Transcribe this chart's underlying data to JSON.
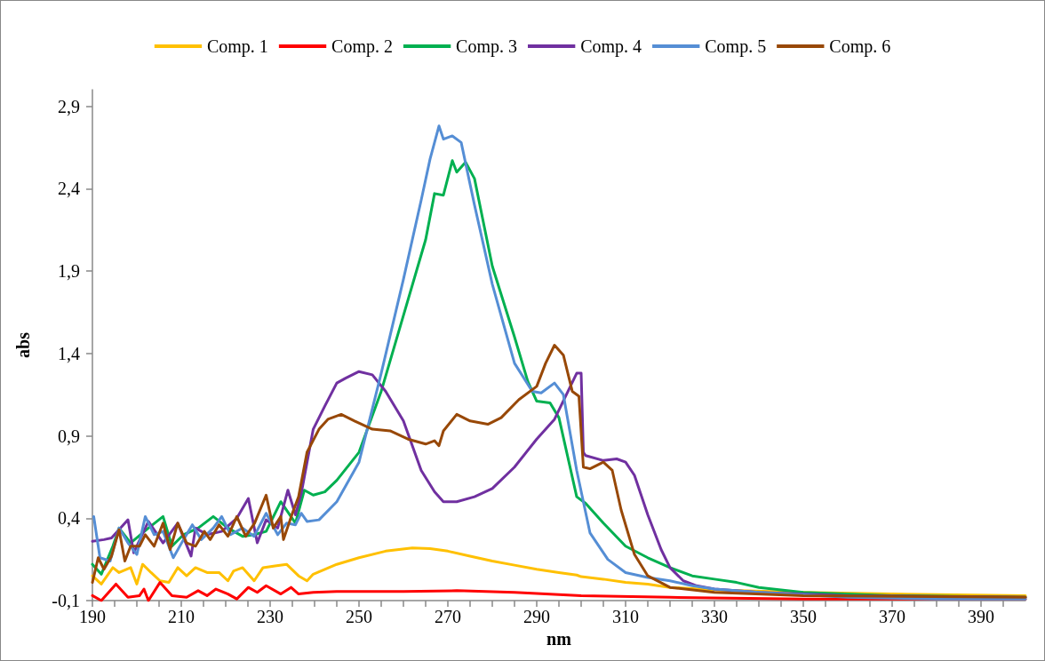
{
  "chart_data": {
    "type": "line",
    "xlabel": "nm",
    "ylabel": "abs",
    "legend": "top",
    "grid": false,
    "xlim": [
      190,
      400
    ],
    "xticks": [
      190,
      {
        "value": 195,
        "label": null
      },
      {
        "value": 200,
        "label": null
      },
      {
        "value": 205,
        "label": null
      },
      210,
      {
        "value": 215,
        "label": null
      },
      {
        "value": 220,
        "label": null
      },
      {
        "value": 225,
        "label": null
      },
      230,
      {
        "value": 235,
        "label": null
      },
      {
        "value": 240,
        "label": null
      },
      {
        "value": 245,
        "label": null
      },
      250,
      {
        "value": 255,
        "label": null
      },
      {
        "value": 260,
        "label": null
      },
      {
        "value": 265,
        "label": null
      },
      270,
      {
        "value": 275,
        "label": null
      },
      {
        "value": 280,
        "label": null
      },
      {
        "value": 285,
        "label": null
      },
      290,
      {
        "value": 295,
        "label": null
      },
      {
        "value": 300,
        "label": null
      },
      {
        "value": 305,
        "label": null
      },
      310,
      {
        "value": 315,
        "label": null
      },
      {
        "value": 320,
        "label": null
      },
      {
        "value": 325,
        "label": null
      },
      330,
      {
        "value": 335,
        "label": null
      },
      {
        "value": 340,
        "label": null
      },
      {
        "value": 345,
        "label": null
      },
      350,
      {
        "value": 355,
        "label": null
      },
      {
        "value": 360,
        "label": null
      },
      {
        "value": 365,
        "label": null
      },
      370,
      {
        "value": 375,
        "label": null
      },
      {
        "value": 380,
        "label": null
      },
      {
        "value": 385,
        "label": null
      },
      390,
      {
        "value": 395,
        "label": null
      }
    ],
    "ylim": [
      -0.1,
      3.0
    ],
    "yticks": [
      {
        "value": -0.1,
        "label": "-0,1"
      },
      {
        "value": 0.4,
        "label": "0,4"
      },
      {
        "value": 0.9,
        "label": "0,9"
      },
      {
        "value": 1.4,
        "label": "1,4"
      },
      {
        "value": 1.9,
        "label": "1,9"
      },
      {
        "value": 2.4,
        "label": "2,4"
      },
      {
        "value": 2.9,
        "label": "2,9"
      }
    ],
    "series": [
      {
        "name": "Comp. 1",
        "color": "#ffc000",
        "x": [
          190,
          192,
          194.6,
          196,
          198.6,
          200,
          201.3,
          203.2,
          205.2,
          207.2,
          209.2,
          211.2,
          213.2,
          215.8,
          218.5,
          220.5,
          221.8,
          223.8,
          226.4,
          228.4,
          231.1,
          233.7,
          236.4,
          238.3,
          239.7,
          245,
          250,
          256,
          262,
          266,
          270,
          275,
          280,
          285,
          290,
          295,
          299,
          300,
          305,
          310,
          315,
          320,
          330,
          350,
          370,
          400
        ],
        "values": [
          0.05,
          0.0,
          0.1,
          0.07,
          0.1,
          0.0,
          0.12,
          0.07,
          0.02,
          0.01,
          0.1,
          0.05,
          0.1,
          0.07,
          0.07,
          0.02,
          0.08,
          0.1,
          0.02,
          0.1,
          0.11,
          0.12,
          0.05,
          0.02,
          0.06,
          0.12,
          0.16,
          0.2,
          0.22,
          0.215,
          0.2,
          0.17,
          0.14,
          0.115,
          0.09,
          0.07,
          0.055,
          0.045,
          0.03,
          0.01,
          0.0,
          -0.02,
          -0.035,
          -0.05,
          -0.06,
          -0.07
        ]
      },
      {
        "name": "Comp. 2",
        "color": "#ff0000",
        "x": [
          190,
          192,
          195.3,
          198,
          200.6,
          201.6,
          202.6,
          205.2,
          207.9,
          211.2,
          213.8,
          215.8,
          217.8,
          220.5,
          222.5,
          225.1,
          227.1,
          229.1,
          232.4,
          234.7,
          236.4,
          239.7,
          245,
          260,
          272,
          285,
          300,
          320,
          350,
          400
        ],
        "values": [
          -0.07,
          -0.1,
          0.0,
          -0.08,
          -0.07,
          -0.03,
          -0.1,
          0.01,
          -0.07,
          -0.08,
          -0.04,
          -0.07,
          -0.03,
          -0.06,
          -0.09,
          -0.02,
          -0.05,
          -0.01,
          -0.06,
          -0.02,
          -0.06,
          -0.05,
          -0.045,
          -0.045,
          -0.04,
          -0.05,
          -0.07,
          -0.08,
          -0.09,
          -0.09
        ]
      },
      {
        "name": "Comp. 3",
        "color": "#00b050",
        "x": [
          190,
          192,
          194.6,
          196,
          198.6,
          202.6,
          205.9,
          207.9,
          210.5,
          213.8,
          217.2,
          220.5,
          223.8,
          226.4,
          229.1,
          232.4,
          235.7,
          237.7,
          239.7,
          242.3,
          245,
          250,
          255,
          260,
          265,
          267,
          269,
          271,
          272,
          274,
          276,
          280,
          285,
          288,
          290,
          293,
          295,
          299,
          301,
          305,
          310,
          315,
          320,
          325,
          330,
          335,
          340,
          350,
          370,
          400
        ],
        "values": [
          0.12,
          0.06,
          0.23,
          0.34,
          0.25,
          0.34,
          0.41,
          0.23,
          0.3,
          0.34,
          0.41,
          0.34,
          0.29,
          0.3,
          0.32,
          0.5,
          0.37,
          0.57,
          0.54,
          0.56,
          0.63,
          0.8,
          1.17,
          1.63,
          2.09,
          2.37,
          2.36,
          2.57,
          2.5,
          2.56,
          2.46,
          1.93,
          1.5,
          1.23,
          1.11,
          1.1,
          1.01,
          0.53,
          0.49,
          0.37,
          0.23,
          0.16,
          0.1,
          0.05,
          0.03,
          0.01,
          -0.02,
          -0.05,
          -0.07,
          -0.08
        ]
      },
      {
        "name": "Comp. 4",
        "color": "#7030a0",
        "x": [
          190,
          192.6,
          194.3,
          198,
          199.3,
          202.6,
          205.9,
          209.2,
          212.2,
          213.2,
          215.8,
          219.1,
          222.5,
          225.1,
          227.1,
          229.1,
          231.7,
          234,
          235.7,
          237,
          239.7,
          242.3,
          245,
          247,
          250,
          253,
          256,
          260,
          264,
          267,
          269,
          272,
          276,
          280,
          285,
          290,
          294,
          299,
          300,
          300.5,
          301,
          305,
          308,
          310,
          312,
          315,
          318,
          320,
          323,
          326,
          330,
          340,
          360,
          400
        ],
        "values": [
          0.26,
          0.27,
          0.28,
          0.39,
          0.19,
          0.38,
          0.25,
          0.37,
          0.17,
          0.34,
          0.3,
          0.32,
          0.4,
          0.52,
          0.25,
          0.39,
          0.34,
          0.57,
          0.42,
          0.55,
          0.94,
          1.08,
          1.22,
          1.25,
          1.29,
          1.27,
          1.17,
          0.99,
          0.69,
          0.56,
          0.5,
          0.5,
          0.53,
          0.58,
          0.71,
          0.88,
          1.0,
          1.28,
          1.28,
          0.8,
          0.78,
          0.75,
          0.76,
          0.74,
          0.66,
          0.42,
          0.21,
          0.1,
          0.02,
          -0.01,
          -0.03,
          -0.05,
          -0.07,
          -0.08
        ]
      },
      {
        "name": "Comp. 5",
        "color": "#558ed5",
        "x": [
          190.3,
          191.7,
          194,
          196,
          198,
          200,
          201.9,
          203.9,
          205.9,
          208.2,
          210.5,
          212.5,
          214.5,
          217.2,
          219.1,
          221.1,
          223.8,
          226.4,
          229.1,
          231.7,
          233.7,
          235.7,
          237,
          238.3,
          241,
          245,
          250,
          255,
          260,
          264,
          266,
          268,
          269,
          271,
          273,
          276,
          280,
          285,
          289,
          291,
          294,
          296,
          299,
          302,
          306,
          310,
          315,
          320,
          325,
          330,
          340,
          360,
          380,
          400
        ],
        "values": [
          0.41,
          0.16,
          0.14,
          0.34,
          0.25,
          0.18,
          0.41,
          0.3,
          0.32,
          0.16,
          0.27,
          0.36,
          0.27,
          0.34,
          0.41,
          0.3,
          0.34,
          0.29,
          0.43,
          0.3,
          0.37,
          0.36,
          0.43,
          0.38,
          0.39,
          0.5,
          0.74,
          1.28,
          1.85,
          2.33,
          2.58,
          2.78,
          2.7,
          2.72,
          2.68,
          2.3,
          1.82,
          1.34,
          1.17,
          1.16,
          1.22,
          1.15,
          0.69,
          0.31,
          0.15,
          0.07,
          0.04,
          0.02,
          -0.01,
          -0.03,
          -0.05,
          -0.08,
          -0.09,
          -0.09
        ]
      },
      {
        "name": "Comp. 6",
        "color": "#984807",
        "x": [
          190,
          191.3,
          192.6,
          194.3,
          196,
          197.3,
          198.6,
          200.6,
          201.9,
          203.9,
          205.9,
          207.5,
          209.2,
          211.2,
          213.2,
          215.2,
          216.5,
          218.5,
          220.5,
          222.5,
          224.5,
          226.5,
          229.1,
          230.7,
          232.4,
          233,
          235,
          236.4,
          238.3,
          241,
          243,
          246,
          249,
          253,
          257,
          261,
          265,
          267,
          268,
          269,
          272,
          275,
          279,
          282,
          286,
          290,
          292,
          294,
          296,
          298,
          299.5,
          300.5,
          302,
          305,
          307,
          309,
          312,
          315,
          320,
          330,
          350,
          400
        ],
        "values": [
          0.01,
          0.16,
          0.09,
          0.17,
          0.33,
          0.14,
          0.23,
          0.23,
          0.3,
          0.23,
          0.37,
          0.21,
          0.37,
          0.25,
          0.23,
          0.32,
          0.27,
          0.36,
          0.29,
          0.41,
          0.29,
          0.37,
          0.54,
          0.34,
          0.41,
          0.27,
          0.43,
          0.53,
          0.8,
          0.94,
          1.0,
          1.03,
          0.99,
          0.94,
          0.93,
          0.88,
          0.85,
          0.87,
          0.84,
          0.93,
          1.03,
          0.99,
          0.97,
          1.01,
          1.12,
          1.2,
          1.34,
          1.45,
          1.39,
          1.17,
          1.14,
          0.71,
          0.7,
          0.74,
          0.69,
          0.45,
          0.18,
          0.05,
          -0.02,
          -0.05,
          -0.07,
          -0.08
        ]
      }
    ]
  }
}
